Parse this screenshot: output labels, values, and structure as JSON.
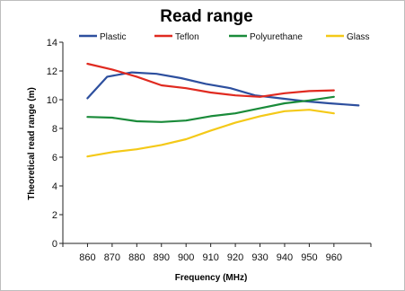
{
  "chart_data": {
    "type": "line",
    "title": "Read range",
    "xlabel": "Frequency (MHz)",
    "ylabel": "Theoretical read range (m)",
    "xlim": [
      850,
      975
    ],
    "ylim": [
      0,
      14
    ],
    "xticks": [
      860,
      870,
      880,
      890,
      900,
      910,
      920,
      930,
      940,
      950,
      960
    ],
    "yticks": [
      0,
      2,
      4,
      6,
      8,
      10,
      12,
      14
    ],
    "grid": false,
    "legend_position": "top",
    "series": [
      {
        "name": "Plastic",
        "color": "#2d4f9e",
        "x": [
          860,
          868,
          878,
          888,
          898,
          908,
          918,
          928,
          938,
          948,
          958,
          970
        ],
        "y": [
          10.1,
          11.6,
          11.9,
          11.8,
          11.5,
          11.1,
          10.8,
          10.3,
          10.1,
          9.9,
          9.75,
          9.6
        ]
      },
      {
        "name": "Teflon",
        "color": "#e02a20",
        "x": [
          860,
          870,
          880,
          890,
          900,
          910,
          920,
          930,
          940,
          950,
          960
        ],
        "y": [
          12.5,
          12.1,
          11.6,
          11.0,
          10.8,
          10.5,
          10.3,
          10.2,
          10.45,
          10.6,
          10.65
        ]
      },
      {
        "name": "Polyurethane",
        "color": "#1a8b3a",
        "x": [
          860,
          870,
          880,
          890,
          900,
          910,
          920,
          930,
          940,
          950,
          960
        ],
        "y": [
          8.8,
          8.75,
          8.5,
          8.45,
          8.55,
          8.85,
          9.05,
          9.4,
          9.75,
          9.95,
          10.2
        ]
      },
      {
        "name": "Glass",
        "color": "#f4c918",
        "x": [
          860,
          870,
          880,
          890,
          900,
          910,
          920,
          930,
          940,
          950,
          960
        ],
        "y": [
          6.05,
          6.35,
          6.55,
          6.85,
          7.25,
          7.85,
          8.4,
          8.85,
          9.2,
          9.3,
          9.05
        ]
      }
    ]
  }
}
